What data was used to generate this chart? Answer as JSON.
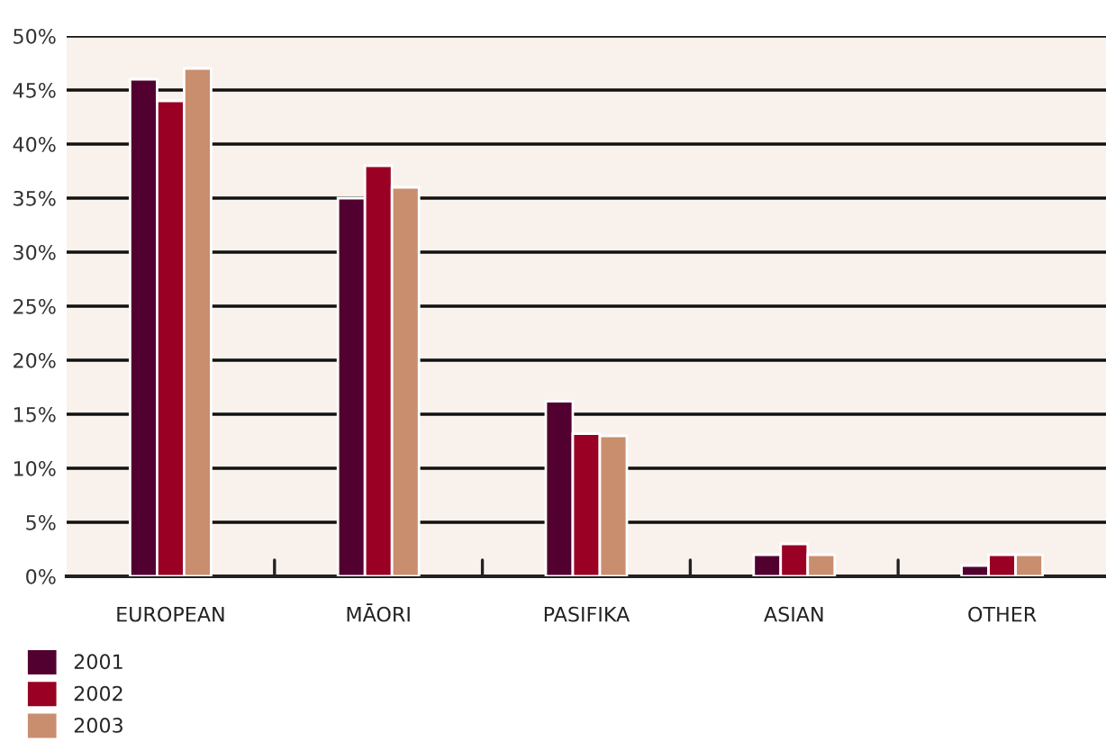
{
  "chart_data": {
    "type": "bar",
    "categories": [
      "EUROPEAN",
      "MĀORI",
      "PASIFIKA",
      "ASIAN",
      "OTHER"
    ],
    "series": [
      {
        "name": "2001",
        "color": "#520030",
        "values": [
          46,
          35,
          16.2,
          2,
          1
        ]
      },
      {
        "name": "2002",
        "color": "#990024",
        "values": [
          44,
          38,
          13.2,
          3,
          2
        ]
      },
      {
        "name": "2003",
        "color": "#c98e6e",
        "values": [
          47,
          36,
          13,
          2,
          2
        ]
      }
    ],
    "ylim": [
      0,
      50
    ],
    "yticks": [
      {
        "value": 0,
        "label": "0%"
      },
      {
        "value": 5,
        "label": "5%"
      },
      {
        "value": 10,
        "label": "10%"
      },
      {
        "value": 15,
        "label": "15%"
      },
      {
        "value": 20,
        "label": "20%"
      },
      {
        "value": 25,
        "label": "25%"
      },
      {
        "value": 30,
        "label": "30%"
      },
      {
        "value": 35,
        "label": "35%"
      },
      {
        "value": 40,
        "label": "40%"
      },
      {
        "value": 45,
        "label": "45%"
      },
      {
        "value": 50,
        "label": "50%"
      }
    ],
    "grid": "y",
    "legend": "bottom left"
  }
}
